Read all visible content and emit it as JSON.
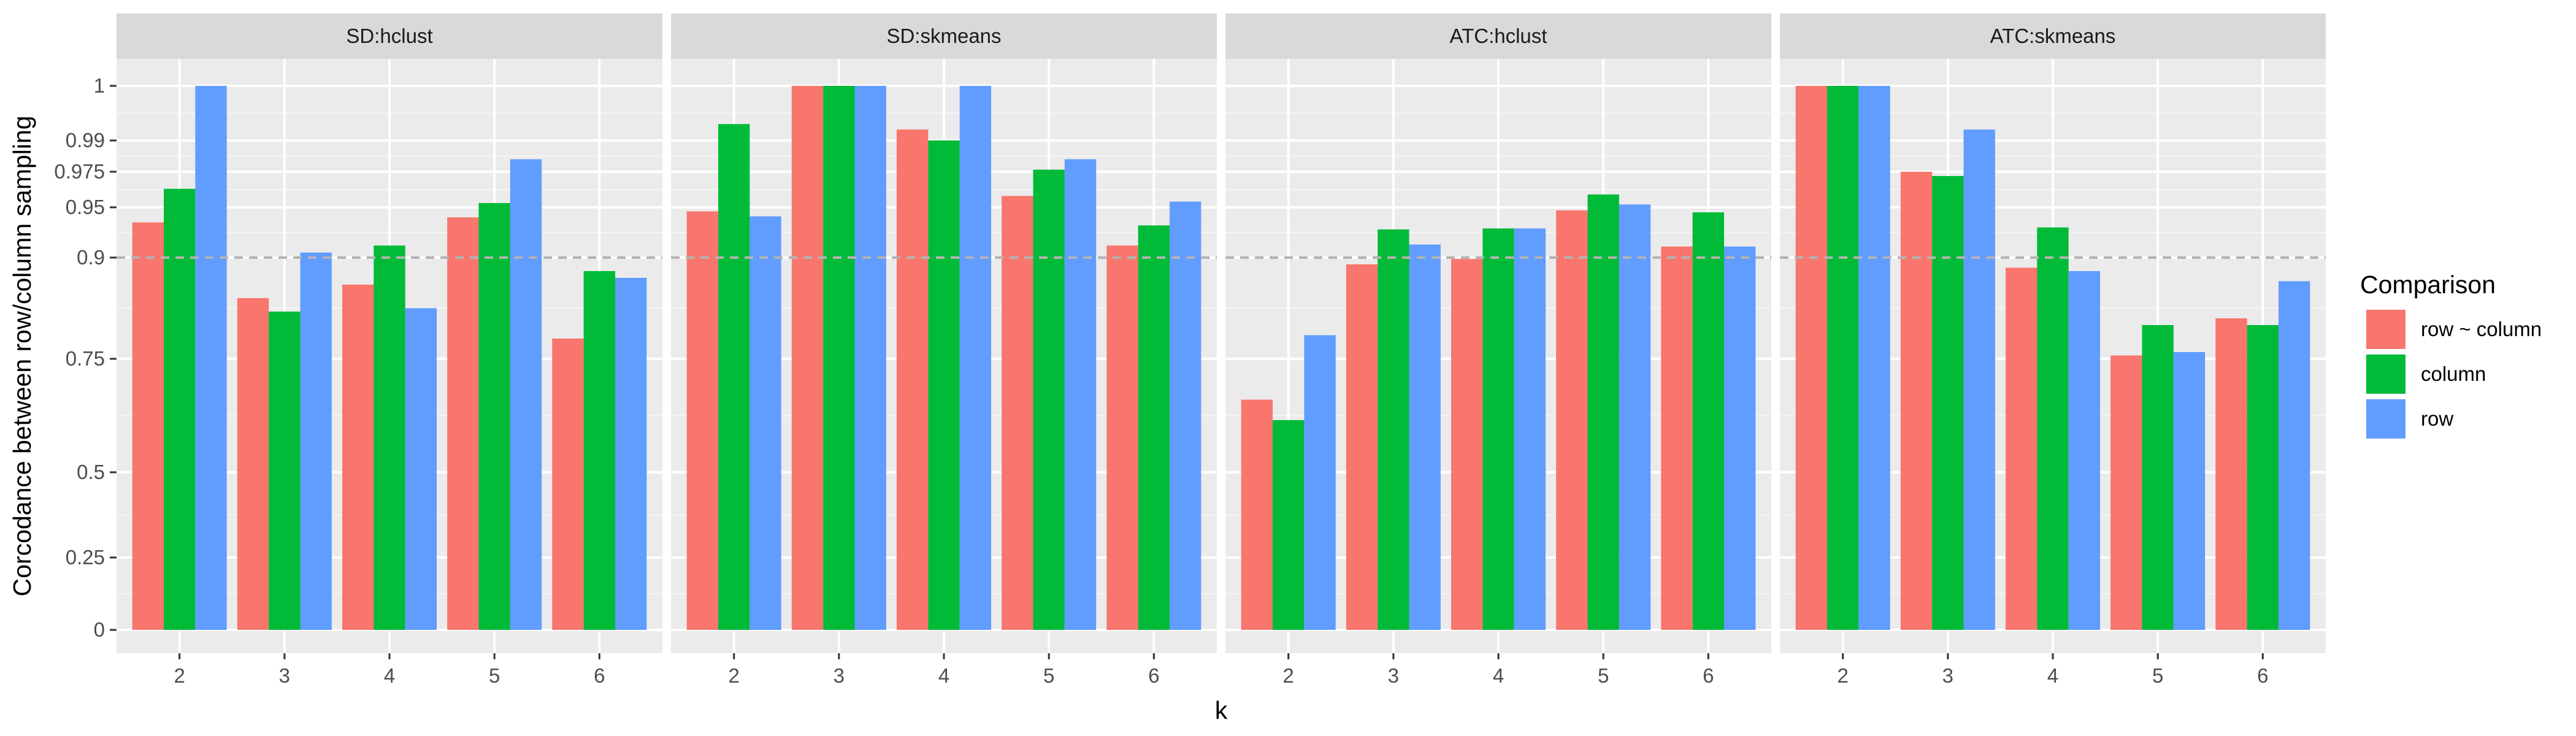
{
  "chart_data": {
    "type": "bar",
    "xlabel": "k",
    "ylabel": "Corcodance between row/column sampling",
    "y_ticks": [
      0,
      0.25,
      0.5,
      0.75,
      0.9,
      0.95,
      0.975,
      0.99,
      1
    ],
    "ylim": [
      0,
      1
    ],
    "y_scale": "non-linear (stretched near 1)",
    "grid": true,
    "reference_line": {
      "y": 0.9,
      "style": "dashed",
      "color": "#b3b3b3"
    },
    "categories": [
      "2",
      "3",
      "4",
      "5",
      "6"
    ],
    "legend": {
      "title": "Comparison",
      "placement": "right",
      "entries": [
        {
          "label": "row ~ column",
          "color": "#F8766D"
        },
        {
          "label": "column",
          "color": "#00BA38"
        },
        {
          "label": "row",
          "color": "#619CFF"
        }
      ]
    },
    "panels": [
      {
        "title": "SD:hclust",
        "series": [
          {
            "name": "row ~ column",
            "values": [
              0.935,
              0.84,
              0.86,
              0.94,
              0.78
            ]
          },
          {
            "name": "column",
            "values": [
              0.963,
              0.82,
              0.912,
              0.953,
              0.88
            ]
          },
          {
            "name": "row",
            "values": [
              1.0,
              0.905,
              0.825,
              0.981,
              0.87
            ]
          }
        ]
      },
      {
        "title": "SD:skmeans",
        "series": [
          {
            "name": "row ~ column",
            "values": [
              0.946,
              1.0,
              0.992,
              0.958,
              0.912
            ]
          },
          {
            "name": "column",
            "values": [
              0.993,
              1.0,
              0.99,
              0.976,
              0.932
            ]
          },
          {
            "name": "row",
            "values": [
              0.941,
              1.0,
              1.0,
              0.981,
              0.954
            ]
          }
        ]
      },
      {
        "title": "ATC:hclust",
        "series": [
          {
            "name": "row ~ column",
            "values": [
              0.66,
              0.89,
              0.898,
              0.947,
              0.911
            ]
          },
          {
            "name": "column",
            "values": [
              0.615,
              0.928,
              0.929,
              0.959,
              0.945
            ]
          },
          {
            "name": "row",
            "values": [
              0.785,
              0.913,
              0.929,
              0.952,
              0.911
            ]
          }
        ]
      },
      {
        "title": "ATC:skmeans",
        "series": [
          {
            "name": "row ~ column",
            "values": [
              1.0,
              0.975,
              0.885,
              0.755,
              0.81
            ]
          },
          {
            "name": "column",
            "values": [
              1.0,
              0.972,
              0.93,
              0.8,
              0.8
            ]
          },
          {
            "name": "row",
            "values": [
              1.0,
              0.992,
              0.88,
              0.76,
              0.865
            ]
          }
        ]
      }
    ]
  }
}
